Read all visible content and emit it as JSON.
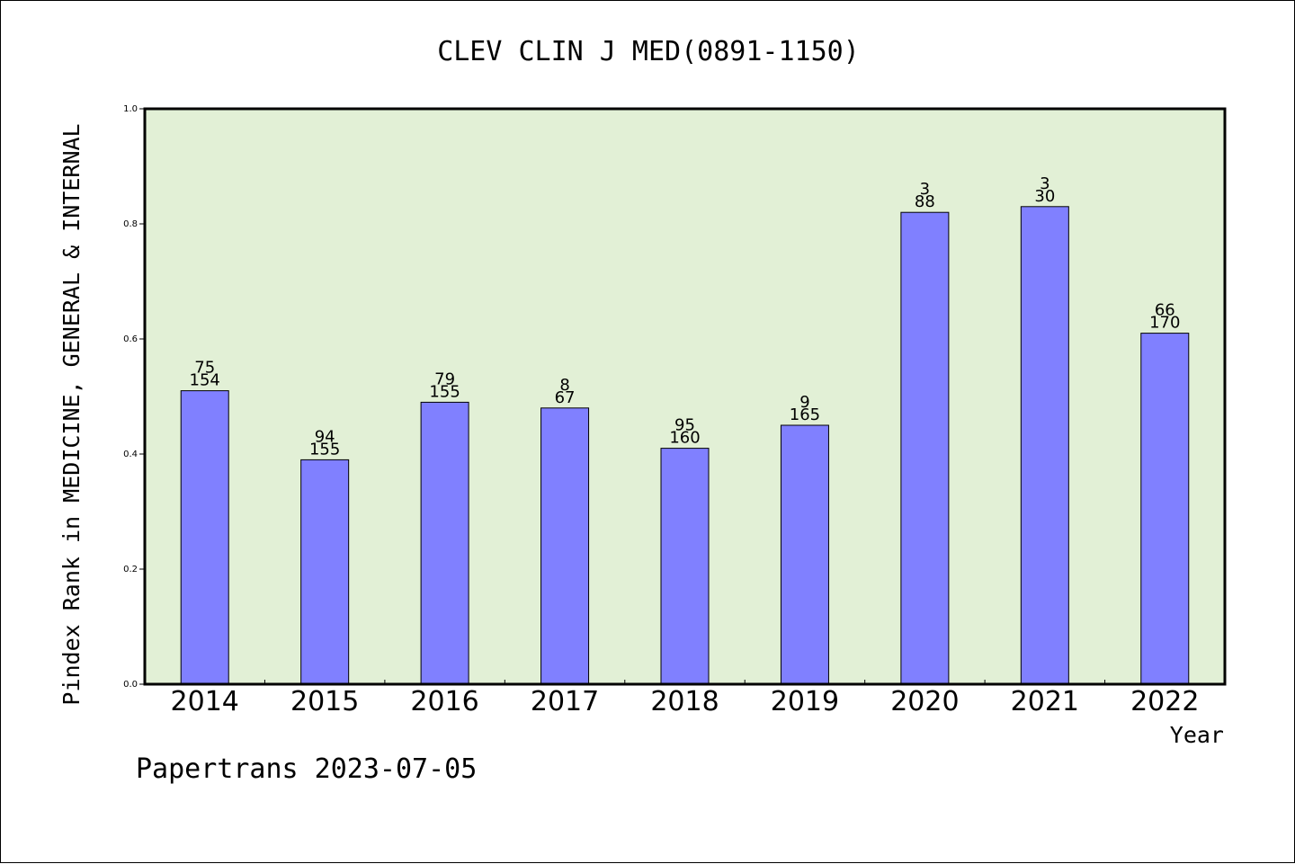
{
  "chart_data": {
    "type": "bar",
    "title": "CLEV CLIN J MED(0891-1150)",
    "xlabel": "Year",
    "ylabel": "Pindex Rank in MEDICINE, GENERAL & INTERNAL",
    "ylim": [
      0,
      1.0
    ],
    "yticks": [
      "0.0",
      "0.2",
      "0.4",
      "0.6",
      "0.8",
      "1.0"
    ],
    "categories": [
      "2014",
      "2015",
      "2016",
      "2017",
      "2018",
      "2019",
      "2020",
      "2021",
      "2022"
    ],
    "values": [
      0.51,
      0.39,
      0.49,
      0.48,
      0.41,
      0.45,
      0.82,
      0.83,
      0.61
    ],
    "rank_labels": [
      "75",
      "94",
      "79",
      "8",
      "95",
      "9",
      "3",
      "3",
      "66"
    ],
    "total_labels": [
      "154",
      "155",
      "155",
      "67",
      "160",
      "165",
      "88",
      "30",
      "170"
    ],
    "grid": false,
    "colors": {
      "bar": "#8080ff",
      "plot_bg": "#e2f0d6",
      "axis": "#000000"
    }
  },
  "footer": {
    "credit": "Papertrans 2023-07-05"
  }
}
